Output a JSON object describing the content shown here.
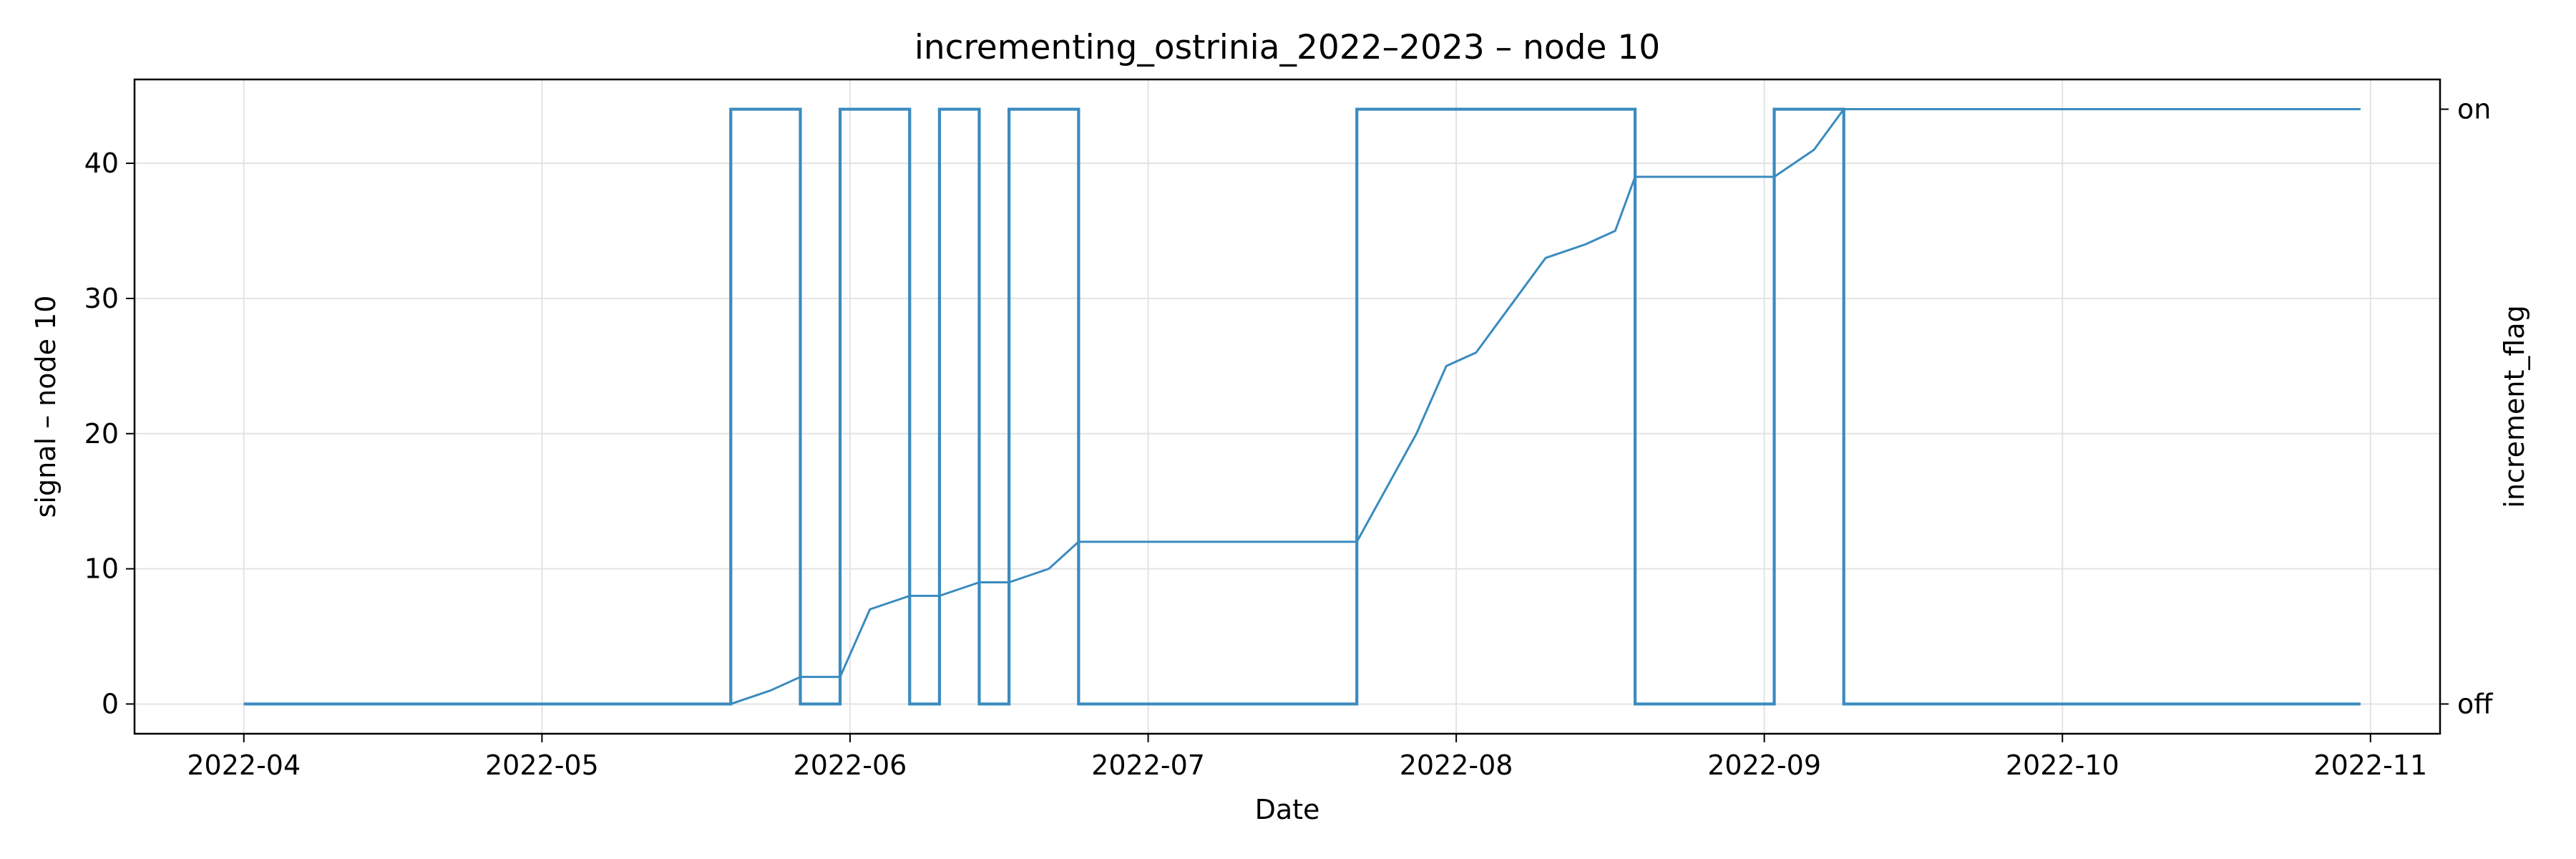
{
  "chart_data": {
    "type": "line",
    "title": "incrementing_ostrinia_2022–2023 – node 10",
    "xlabel": "Date",
    "ylabel": "signal – node 10",
    "y2label": "increment_flag",
    "xlim": [
      "2022-03-21",
      "2022-11-08"
    ],
    "ylim": [
      -2.2,
      46.2
    ],
    "grid": true,
    "x_ticks": [
      "2022-04",
      "2022-05",
      "2022-06",
      "2022-07",
      "2022-08",
      "2022-09",
      "2022-10",
      "2022-11"
    ],
    "y_ticks": [
      0,
      10,
      20,
      30,
      40
    ],
    "y2_ticks": [
      "off",
      "on"
    ],
    "color": "#3a8bbf",
    "series": [
      {
        "axis": "left",
        "points": [
          [
            "2022-04-01",
            0
          ],
          [
            "2022-05-20",
            0
          ],
          [
            "2022-05-24",
            1
          ],
          [
            "2022-05-27",
            2
          ],
          [
            "2022-05-31",
            2
          ],
          [
            "2022-06-03",
            7
          ],
          [
            "2022-06-07",
            8
          ],
          [
            "2022-06-10",
            8
          ],
          [
            "2022-06-14",
            9
          ],
          [
            "2022-06-17",
            9
          ],
          [
            "2022-06-21",
            10
          ],
          [
            "2022-06-24",
            12
          ],
          [
            "2022-07-22",
            12
          ],
          [
            "2022-07-25",
            16
          ],
          [
            "2022-07-28",
            20
          ],
          [
            "2022-07-31",
            25
          ],
          [
            "2022-08-03",
            26
          ],
          [
            "2022-08-07",
            30
          ],
          [
            "2022-08-10",
            33
          ],
          [
            "2022-08-14",
            34
          ],
          [
            "2022-08-17",
            35
          ],
          [
            "2022-08-19",
            39
          ],
          [
            "2022-09-02",
            39
          ],
          [
            "2022-09-06",
            41
          ],
          [
            "2022-09-09",
            44
          ],
          [
            "2022-10-31",
            44
          ]
        ]
      },
      {
        "axis": "right",
        "step": true,
        "points": [
          [
            "2022-04-01",
            0
          ],
          [
            "2022-05-20",
            1
          ],
          [
            "2022-05-27",
            0
          ],
          [
            "2022-05-31",
            1
          ],
          [
            "2022-06-07",
            0
          ],
          [
            "2022-06-10",
            1
          ],
          [
            "2022-06-14",
            0
          ],
          [
            "2022-06-17",
            1
          ],
          [
            "2022-06-24",
            0
          ],
          [
            "2022-07-22",
            1
          ],
          [
            "2022-08-19",
            0
          ],
          [
            "2022-09-02",
            1
          ],
          [
            "2022-09-09",
            0
          ],
          [
            "2022-10-31",
            0
          ]
        ]
      }
    ]
  }
}
